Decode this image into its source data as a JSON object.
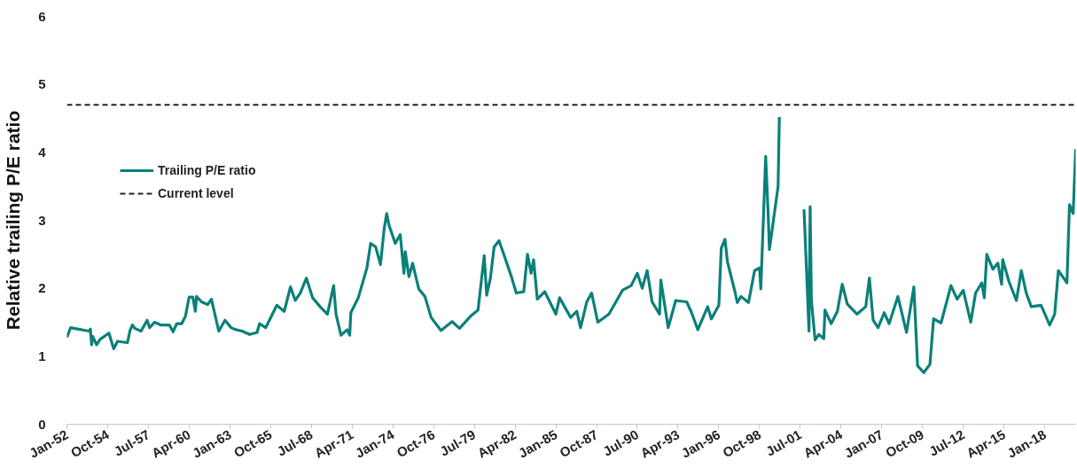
{
  "chart_data": {
    "type": "line",
    "ylabel": "Relative trailing P/E ratio",
    "x": [
      "1952-01",
      "1952-04",
      "1953-07",
      "1953-08",
      "1953-09",
      "1953-10",
      "1954-01",
      "1954-04",
      "1954-11",
      "1955-03",
      "1955-06",
      "1956-02",
      "1956-04",
      "1956-06",
      "1956-08",
      "1957-01",
      "1957-06",
      "1957-08",
      "1957-12",
      "1958-05",
      "1958-12",
      "1959-03",
      "1959-06",
      "1959-10",
      "1960-01",
      "1960-04",
      "1960-07",
      "1960-09",
      "1960-10",
      "1961-02",
      "1961-07",
      "1961-10",
      "1962-04",
      "1962-09",
      "1963-02",
      "1963-06",
      "1963-11",
      "1964-05",
      "1964-11",
      "1965-01",
      "1965-06",
      "1965-12",
      "1966-03",
      "1966-09",
      "1967-02",
      "1967-06",
      "1967-10",
      "1968-03",
      "1968-08",
      "1969-02",
      "1969-08",
      "1970-01",
      "1970-03",
      "1970-07",
      "1970-12",
      "1971-02",
      "1971-03",
      "1971-09",
      "1972-04",
      "1972-07",
      "1972-11",
      "1973-03",
      "1973-06",
      "1973-08",
      "1973-10",
      "1974-03",
      "1974-07",
      "1974-10",
      "1974-11",
      "1975-02",
      "1975-05",
      "1975-10",
      "1976-03",
      "1976-08",
      "1977-04",
      "1978-01",
      "1978-07",
      "1979-04",
      "1979-10",
      "1980-03",
      "1980-05",
      "1980-08",
      "1980-11",
      "1981-03",
      "1981-08",
      "1982-01",
      "1982-05",
      "1982-11",
      "1983-02",
      "1983-05",
      "1983-07",
      "1983-10",
      "1984-04",
      "1985-01",
      "1985-04",
      "1986-01",
      "1986-06",
      "1986-09",
      "1987-02",
      "1987-06",
      "1987-11",
      "1988-08",
      "1989-07",
      "1990-02",
      "1990-07",
      "1990-11",
      "1991-03",
      "1991-07",
      "1992-01",
      "1992-02",
      "1992-08",
      "1993-02",
      "1993-11",
      "1994-03",
      "1994-08",
      "1995-04",
      "1995-07",
      "1996-01",
      "1996-03",
      "1996-06",
      "1996-08",
      "1997-02",
      "1997-04",
      "1997-07",
      "1998-01",
      "1998-06",
      "1998-10",
      "1998-11",
      "1999-03",
      "1999-05",
      "1999-06",
      "1999-09",
      "2000-01",
      "2000-02",
      "2001-01",
      "2001-10",
      "2002-02",
      "2002-03",
      "2002-04",
      "2002-07",
      "2002-10",
      "2003-02",
      "2003-03",
      "2003-08",
      "2004-01",
      "2004-05",
      "2004-09",
      "2005-05",
      "2005-12",
      "2006-03",
      "2006-06",
      "2006-10",
      "2007-03",
      "2007-07",
      "2008-02",
      "2008-09",
      "2009-03",
      "2009-06",
      "2009-11",
      "2010-04",
      "2010-07",
      "2011-01",
      "2011-09",
      "2012-02",
      "2012-07",
      "2013-01",
      "2013-05",
      "2013-10",
      "2013-12",
      "2014-02",
      "2014-07",
      "2014-11",
      "2015-02",
      "2015-03",
      "2015-08",
      "2016-02",
      "2016-06",
      "2016-10",
      "2017-02",
      "2017-10",
      "2018-05",
      "2018-09",
      "2018-12",
      "2019-07",
      "2019-09",
      "2019-12",
      "2020-02"
    ],
    "series": [
      {
        "name": "Trailing P/E ratio",
        "color": "#0b8079",
        "values": [
          1.28,
          1.42,
          1.37,
          1.4,
          1.17,
          1.29,
          1.17,
          1.25,
          1.34,
          1.11,
          1.22,
          1.2,
          1.37,
          1.46,
          1.41,
          1.37,
          1.53,
          1.42,
          1.5,
          1.46,
          1.46,
          1.36,
          1.48,
          1.48,
          1.59,
          1.87,
          1.87,
          1.66,
          1.88,
          1.8,
          1.76,
          1.84,
          1.37,
          1.53,
          1.42,
          1.39,
          1.37,
          1.32,
          1.35,
          1.48,
          1.42,
          1.64,
          1.75,
          1.66,
          2.02,
          1.82,
          1.93,
          2.15,
          1.86,
          1.73,
          1.62,
          2.04,
          1.62,
          1.31,
          1.39,
          1.31,
          1.64,
          1.86,
          2.3,
          2.66,
          2.61,
          2.35,
          2.88,
          3.1,
          2.92,
          2.66,
          2.79,
          2.22,
          2.54,
          2.17,
          2.37,
          1.99,
          1.88,
          1.57,
          1.38,
          1.51,
          1.41,
          1.59,
          1.68,
          2.48,
          1.9,
          2.15,
          2.61,
          2.7,
          2.44,
          2.17,
          1.93,
          1.95,
          2.5,
          2.22,
          2.42,
          1.84,
          1.95,
          1.62,
          1.86,
          1.57,
          1.66,
          1.42,
          1.8,
          1.93,
          1.5,
          1.62,
          1.97,
          2.04,
          2.22,
          2.0,
          2.26,
          1.8,
          1.62,
          2.12,
          1.42,
          1.82,
          1.8,
          1.64,
          1.39,
          1.73,
          1.55,
          1.75,
          2.59,
          2.72,
          2.39,
          1.95,
          1.79,
          1.88,
          1.79,
          2.26,
          2.3,
          1.99,
          3.94,
          3.1,
          2.57,
          2.97,
          3.5,
          4.52,
          null,
          3.16,
          1.37,
          3.2,
          1.82,
          1.24,
          1.32,
          1.26,
          1.68,
          1.48,
          1.66,
          2.06,
          1.77,
          1.62,
          1.73,
          2.15,
          1.53,
          1.42,
          1.64,
          1.48,
          1.88,
          1.35,
          2.02,
          0.86,
          0.76,
          0.88,
          1.55,
          1.49,
          2.04,
          1.84,
          1.97,
          1.5,
          1.93,
          2.08,
          1.86,
          2.5,
          2.28,
          2.37,
          2.06,
          2.42,
          2.1,
          1.82,
          2.26,
          1.93,
          1.73,
          1.75,
          1.46,
          1.62,
          2.26,
          2.08,
          3.23,
          3.1,
          4.05
        ]
      }
    ],
    "xlim": [
      "1952-01",
      "2020-02"
    ],
    "xticks": [
      {
        "value": "1952-01",
        "label": "Jan-52"
      },
      {
        "value": "1954-10",
        "label": "Oct-54"
      },
      {
        "value": "1957-07",
        "label": "Jul-57"
      },
      {
        "value": "1960-04",
        "label": "Apr-60"
      },
      {
        "value": "1963-01",
        "label": "Jan-63"
      },
      {
        "value": "1965-10",
        "label": "Oct-65"
      },
      {
        "value": "1968-07",
        "label": "Jul-68"
      },
      {
        "value": "1971-04",
        "label": "Apr-71"
      },
      {
        "value": "1974-01",
        "label": "Jan-74"
      },
      {
        "value": "1976-10",
        "label": "Oct-76"
      },
      {
        "value": "1979-07",
        "label": "Jul-79"
      },
      {
        "value": "1982-04",
        "label": "Apr-82"
      },
      {
        "value": "1985-01",
        "label": "Jan-85"
      },
      {
        "value": "1987-10",
        "label": "Oct-87"
      },
      {
        "value": "1990-07",
        "label": "Jul-90"
      },
      {
        "value": "1993-04",
        "label": "Apr-93"
      },
      {
        "value": "1996-01",
        "label": "Jan-96"
      },
      {
        "value": "1998-10",
        "label": "Oct-98"
      },
      {
        "value": "2001-07",
        "label": "Jul-01"
      },
      {
        "value": "2004-04",
        "label": "Apr-04"
      },
      {
        "value": "2007-01",
        "label": "Jan-07"
      },
      {
        "value": "2009-10",
        "label": "Oct-09"
      },
      {
        "value": "2012-07",
        "label": "Jul-12"
      },
      {
        "value": "2015-04",
        "label": "Apr-15"
      },
      {
        "value": "2018-01",
        "label": "Jan-18"
      }
    ],
    "ylim": [
      0,
      6
    ],
    "yticks": [
      0,
      1,
      2,
      3,
      4,
      5,
      6
    ],
    "ref_lines": [
      {
        "axis": "y",
        "value": 4.7,
        "label": "Current level",
        "color": "#222222",
        "line_style": "dashed"
      }
    ],
    "grid": false,
    "legend": "left",
    "marker": "none",
    "line_style": "solid"
  }
}
